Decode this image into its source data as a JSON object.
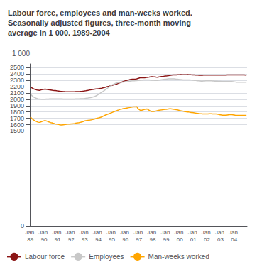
{
  "chart_data": {
    "type": "line",
    "title": "Labour force, employees and man-weeks worked.\nSeasonally adjusted figures, three-month moving\naverage in 1 000. 1989-2004",
    "ylabel": "1 000",
    "categories": [
      "Jan.\n89",
      null,
      null,
      null,
      null,
      null,
      null,
      null,
      null,
      null,
      null,
      null,
      "Jan.\n90",
      null,
      null,
      null,
      null,
      null,
      null,
      null,
      null,
      null,
      null,
      null,
      "Jan.\n91",
      null,
      null,
      null,
      null,
      null,
      null,
      null,
      null,
      null,
      null,
      null,
      "Jan.\n92",
      null,
      null,
      null,
      null,
      null,
      null,
      null,
      null,
      null,
      null,
      null,
      "Jan.\n93",
      null,
      null,
      null,
      null,
      null,
      null,
      null,
      null,
      null,
      null,
      null,
      "Jan.\n94",
      null,
      null,
      null,
      null,
      null,
      null,
      null,
      null,
      null,
      null,
      null,
      "Jan.\n95",
      null,
      null,
      null,
      null,
      null,
      null,
      null,
      null,
      null,
      null,
      null,
      "Jan.\n96",
      null,
      null,
      null,
      null,
      null,
      null,
      null,
      null,
      null,
      null,
      null,
      "Jan.\n97",
      null,
      null,
      null,
      null,
      null,
      null,
      null,
      null,
      null,
      null,
      null,
      "Jan.\n98",
      null,
      null,
      null,
      null,
      null,
      null,
      null,
      null,
      null,
      null,
      null,
      "Jan.\n99",
      null,
      null,
      null,
      null,
      null,
      null,
      null,
      null,
      null,
      null,
      null,
      "Jan.\n00",
      null,
      null,
      null,
      null,
      null,
      null,
      null,
      null,
      null,
      null,
      null,
      "Jan.\n01",
      null,
      null,
      null,
      null,
      null,
      null,
      null,
      null,
      null,
      null,
      null,
      "Jan.\n02",
      null,
      null,
      null,
      null,
      null,
      null,
      null,
      null,
      null,
      null,
      null,
      "Jan.\n03",
      null,
      null,
      null,
      null,
      null,
      null,
      null,
      null,
      null,
      null,
      null,
      "Jan.\n04",
      null,
      null,
      null,
      null,
      null,
      null,
      null,
      null,
      null,
      null,
      null
    ],
    "series": [
      {
        "name": "Labour force",
        "color": "#8B1515",
        "values": [
          2200,
          2185,
          2175,
          2165,
          2158,
          2152,
          2148,
          2145,
          2142,
          2148,
          2152,
          2155,
          2158,
          2162,
          2158,
          2155,
          2152,
          2150,
          2148,
          2145,
          2142,
          2140,
          2138,
          2135,
          2132,
          2130,
          2128,
          2126,
          2125,
          2123,
          2122,
          2120,
          2119,
          2118,
          2118,
          2118,
          2118,
          2118,
          2118,
          2120,
          2121,
          2122,
          2122,
          2123,
          2124,
          2126,
          2128,
          2130,
          2133,
          2136,
          2140,
          2143,
          2146,
          2149,
          2152,
          2155,
          2158,
          2161,
          2163,
          2165,
          2168,
          2170,
          2173,
          2175,
          2180,
          2185,
          2190,
          2195,
          2200,
          2205,
          2210,
          2215,
          2220,
          2225,
          2230,
          2235,
          2240,
          2248,
          2255,
          2262,
          2268,
          2275,
          2282,
          2288,
          2295,
          2300,
          2305,
          2308,
          2312,
          2315,
          2318,
          2320,
          2320,
          2322,
          2325,
          2330,
          2335,
          2340,
          2342,
          2342,
          2342,
          2342,
          2345,
          2348,
          2350,
          2352,
          2355,
          2358,
          2358,
          2356,
          2355,
          2352,
          2350,
          2352,
          2355,
          2358,
          2360,
          2362,
          2365,
          2368,
          2370,
          2372,
          2375,
          2378,
          2380,
          2382,
          2385,
          2387,
          2387,
          2387,
          2388,
          2389,
          2390,
          2391,
          2390,
          2389,
          2390,
          2390,
          2390,
          2391,
          2390,
          2390,
          2388,
          2387,
          2386,
          2385,
          2384,
          2383,
          2382,
          2381,
          2380,
          2380,
          2381,
          2382,
          2383,
          2383,
          2383,
          2383,
          2383,
          2383,
          2383,
          2382,
          2382,
          2382,
          2382,
          2382,
          2382,
          2382,
          2382,
          2382,
          2382,
          2382,
          2383,
          2384,
          2385,
          2385,
          2385,
          2385,
          2385,
          2385,
          2385,
          2385,
          2385,
          2385,
          2385,
          2385,
          2385,
          2385,
          2385,
          2385,
          2383,
          2382
        ]
      },
      {
        "name": "Employees",
        "color": "#C8C8C8",
        "values": [
          2090,
          2065,
          2048,
          2035,
          2025,
          2018,
          2012,
          2008,
          2005,
          2003,
          2002,
          2001,
          2001,
          2002,
          2003,
          2004,
          2005,
          2006,
          2006,
          2007,
          2007,
          2008,
          2008,
          2008,
          2008,
          2008,
          2007,
          2007,
          2006,
          2005,
          2004,
          2003,
          2003,
          2003,
          2003,
          2003,
          2003,
          2003,
          2003,
          2005,
          2006,
          2007,
          2008,
          2008,
          2009,
          2010,
          2010,
          2010,
          2012,
          2015,
          2018,
          2020,
          2023,
          2027,
          2030,
          2035,
          2040,
          2047,
          2055,
          2065,
          2075,
          2088,
          2100,
          2112,
          2122,
          2135,
          2148,
          2162,
          2175,
          2188,
          2200,
          2212,
          2224,
          2235,
          2244,
          2252,
          2258,
          2262,
          2265,
          2268,
          2270,
          2272,
          2274,
          2276,
          2278,
          2280,
          2282,
          2285,
          2288,
          2290,
          2292,
          2294,
          2294,
          2295,
          2296,
          2298,
          2300,
          2302,
          2304,
          2305,
          2306,
          2307,
          2308,
          2308,
          2307,
          2306,
          2305,
          2303,
          2302,
          2301,
          2300,
          2300,
          2300,
          2302,
          2304,
          2307,
          2310,
          2313,
          2316,
          2318,
          2320,
          2322,
          2324,
          2325,
          2325,
          2325,
          2325,
          2324,
          2322,
          2320,
          2318,
          2316,
          2314,
          2312,
          2310,
          2308,
          2308,
          2308,
          2308,
          2308,
          2308,
          2308,
          2306,
          2304,
          2302,
          2300,
          2298,
          2296,
          2294,
          2292,
          2290,
          2288,
          2289,
          2290,
          2291,
          2292,
          2293,
          2293,
          2293,
          2293,
          2292,
          2291,
          2290,
          2289,
          2288,
          2287,
          2286,
          2285,
          2284,
          2283,
          2283,
          2283,
          2283,
          2283,
          2283,
          2283,
          2283,
          2283,
          2282,
          2280,
          2278,
          2275,
          2272,
          2272,
          2272,
          2272,
          2272,
          2272,
          2272,
          2272,
          2272,
          2272
        ]
      },
      {
        "name": "Man-weeks worked",
        "color": "#FFA500",
        "values": [
          1720,
          1700,
          1685,
          1672,
          1660,
          1652,
          1645,
          1638,
          1635,
          1640,
          1648,
          1655,
          1660,
          1665,
          1658,
          1652,
          1645,
          1638,
          1632,
          1628,
          1622,
          1618,
          1612,
          1608,
          1605,
          1602,
          1598,
          1595,
          1595,
          1598,
          1600,
          1602,
          1605,
          1608,
          1608,
          1608,
          1610,
          1612,
          1615,
          1618,
          1622,
          1626,
          1628,
          1630,
          1635,
          1640,
          1645,
          1650,
          1658,
          1662,
          1665,
          1668,
          1670,
          1672,
          1675,
          1680,
          1685,
          1690,
          1695,
          1700,
          1705,
          1710,
          1715,
          1720,
          1730,
          1740,
          1748,
          1755,
          1762,
          1768,
          1775,
          1782,
          1790,
          1798,
          1805,
          1812,
          1818,
          1825,
          1832,
          1840,
          1845,
          1848,
          1852,
          1855,
          1858,
          1862,
          1865,
          1868,
          1872,
          1875,
          1878,
          1882,
          1882,
          1882,
          1885,
          1855,
          1840,
          1828,
          1825,
          1830,
          1835,
          1840,
          1845,
          1848,
          1838,
          1825,
          1815,
          1808,
          1808,
          1808,
          1810,
          1815,
          1820,
          1825,
          1828,
          1830,
          1832,
          1835,
          1838,
          1840,
          1842,
          1845,
          1848,
          1850,
          1850,
          1848,
          1845,
          1842,
          1838,
          1835,
          1832,
          1828,
          1822,
          1818,
          1815,
          1812,
          1808,
          1805,
          1802,
          1800,
          1798,
          1795,
          1792,
          1790,
          1788,
          1785,
          1782,
          1780,
          1778,
          1775,
          1772,
          1770,
          1768,
          1768,
          1768,
          1768,
          1768,
          1768,
          1770,
          1772,
          1770,
          1768,
          1768,
          1768,
          1768,
          1765,
          1762,
          1758,
          1755,
          1752,
          1750,
          1748,
          1748,
          1748,
          1752,
          1755,
          1758,
          1758,
          1758,
          1755,
          1752,
          1748,
          1745,
          1745,
          1745,
          1745,
          1745,
          1745,
          1745,
          1745,
          1745,
          1745
        ]
      }
    ],
    "ylim": [
      0,
      2560
    ],
    "yticks": [
      0,
      1500,
      1600,
      1700,
      1800,
      1900,
      2000,
      2100,
      2200,
      2300,
      2400,
      2500
    ],
    "grid": true,
    "legend": "lower left"
  }
}
